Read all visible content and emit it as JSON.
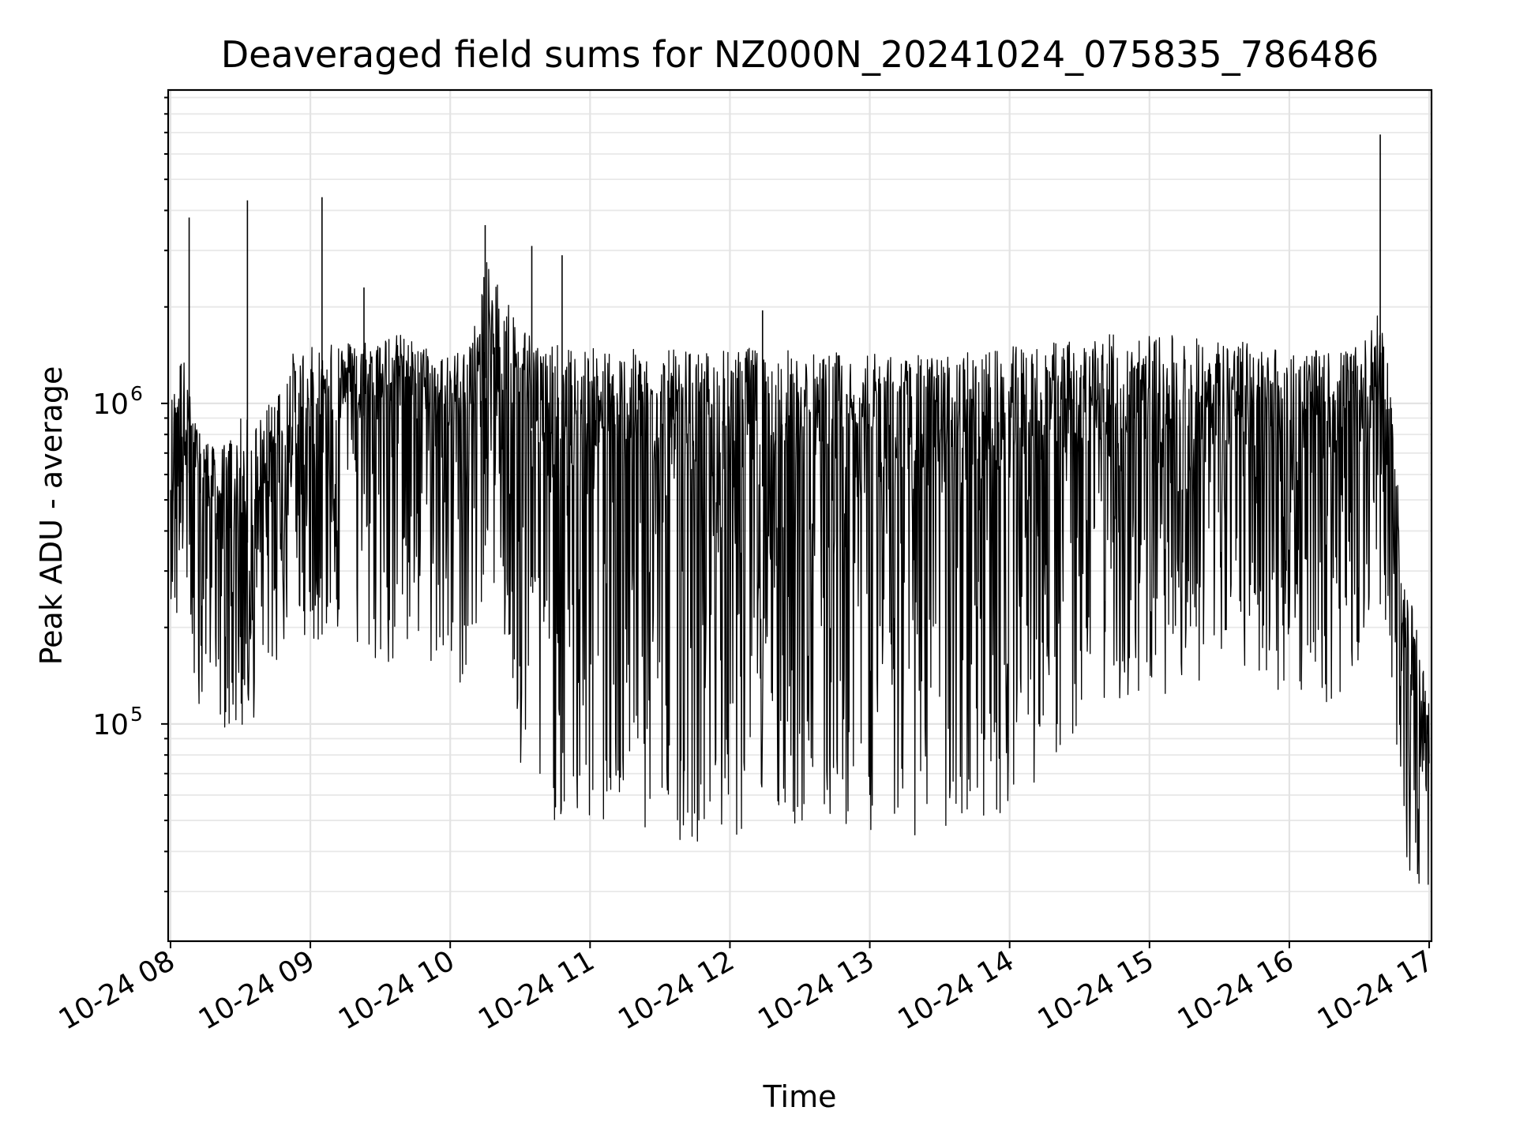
{
  "chart_data": {
    "type": "line",
    "title": "Deaveraged field sums for NZ000N_20241024_075835_786486",
    "xlabel": "Time",
    "ylabel": "Peak ADU - average",
    "yscale": "log",
    "ylim": [
      21000,
      9500000
    ],
    "xlim": [
      "2024-10-24 07:59",
      "2024-10-24 17:01"
    ],
    "x_tick_labels": [
      "10-24 08",
      "10-24 09",
      "10-24 10",
      "10-24 11",
      "10-24 12",
      "10-24 13",
      "10-24 14",
      "10-24 15",
      "10-24 16",
      "10-24 17"
    ],
    "y_tick_labels": [
      {
        "base": "10",
        "exp": "5",
        "value": 100000
      },
      {
        "base": "10",
        "exp": "6",
        "value": 1000000
      }
    ],
    "grid": true,
    "legend": "none",
    "color": "#000000",
    "series": [
      {
        "x": [
          "2024-10-24 08:00",
          "2024-10-24 08:05",
          "2024-10-24 08:10",
          "2024-10-24 08:15",
          "2024-10-24 08:20",
          "2024-10-24 08:25",
          "2024-10-24 08:30",
          "2024-10-24 08:35",
          "2024-10-24 08:40",
          "2024-10-24 08:45",
          "2024-10-24 08:50",
          "2024-10-24 08:55",
          "2024-10-24 09:00",
          "2024-10-24 09:10",
          "2024-10-24 09:20",
          "2024-10-24 09:30",
          "2024-10-24 09:40",
          "2024-10-24 09:50",
          "2024-10-24 10:00",
          "2024-10-24 10:10",
          "2024-10-24 10:15",
          "2024-10-24 10:20",
          "2024-10-24 10:30",
          "2024-10-24 10:40",
          "2024-10-24 10:50",
          "2024-10-24 11:00",
          "2024-10-24 11:15",
          "2024-10-24 11:30",
          "2024-10-24 11:45",
          "2024-10-24 12:00",
          "2024-10-24 12:15",
          "2024-10-24 12:30",
          "2024-10-24 12:45",
          "2024-10-24 13:00",
          "2024-10-24 13:15",
          "2024-10-24 13:30",
          "2024-10-24 13:45",
          "2024-10-24 14:00",
          "2024-10-24 14:15",
          "2024-10-24 14:30",
          "2024-10-24 14:45",
          "2024-10-24 15:00",
          "2024-10-24 15:15",
          "2024-10-24 15:30",
          "2024-10-24 15:45",
          "2024-10-24 16:00",
          "2024-10-24 16:15",
          "2024-10-24 16:30",
          "2024-10-24 16:40",
          "2024-10-24 16:50",
          "2024-10-24 17:00"
        ],
        "median": [
          800000,
          700000,
          550000,
          500000,
          400000,
          350000,
          350000,
          380000,
          420000,
          500000,
          550000,
          600000,
          750000,
          850000,
          900000,
          950000,
          950000,
          850000,
          800000,
          1000000,
          1200000,
          1300000,
          1000000,
          700000,
          650000,
          600000,
          580000,
          570000,
          560000,
          560000,
          550000,
          540000,
          530000,
          520000,
          520000,
          520000,
          540000,
          580000,
          620000,
          650000,
          680000,
          700000,
          720000,
          730000,
          700000,
          650000,
          650000,
          700000,
          900000,
          120000,
          60000
        ],
        "high": [
          1000000,
          1500000,
          900000,
          800000,
          700000,
          800000,
          900000,
          900000,
          950000,
          1100000,
          1400000,
          1500000,
          1500000,
          1550000,
          1600000,
          1650000,
          1650000,
          1500000,
          1400000,
          1700000,
          2800000,
          2500000,
          1800000,
          1550000,
          1500000,
          1500000,
          1480000,
          1470000,
          1470000,
          1480000,
          1500000,
          1480000,
          1450000,
          1430000,
          1420000,
          1430000,
          1450000,
          1500000,
          1550000,
          1600000,
          1650000,
          1650000,
          1620000,
          1600000,
          1550000,
          1500000,
          1450000,
          1500000,
          2000000,
          300000,
          120000
        ],
        "low": [
          250000,
          150000,
          120000,
          110000,
          100000,
          95000,
          90000,
          100000,
          120000,
          150000,
          180000,
          200000,
          180000,
          160000,
          150000,
          150000,
          140000,
          150000,
          120000,
          140000,
          300000,
          250000,
          60000,
          50000,
          48000,
          45000,
          44000,
          43000,
          43000,
          44000,
          45000,
          46000,
          46000,
          46000,
          45000,
          44000,
          46000,
          55000,
          70000,
          90000,
          110000,
          120000,
          130000,
          140000,
          140000,
          120000,
          110000,
          120000,
          200000,
          32000,
          30000
        ]
      }
    ],
    "spikes": [
      {
        "x": "2024-10-24 08:08",
        "y": 3800000
      },
      {
        "x": "2024-10-24 08:33",
        "y": 4300000
      },
      {
        "x": "2024-10-24 09:05",
        "y": 4400000
      },
      {
        "x": "2024-10-24 09:23",
        "y": 2300000
      },
      {
        "x": "2024-10-24 10:15",
        "y": 3600000
      },
      {
        "x": "2024-10-24 10:35",
        "y": 3100000
      },
      {
        "x": "2024-10-24 10:48",
        "y": 2900000
      },
      {
        "x": "2024-10-24 12:14",
        "y": 1950000
      },
      {
        "x": "2024-10-24 16:39",
        "y": 6900000
      }
    ]
  }
}
